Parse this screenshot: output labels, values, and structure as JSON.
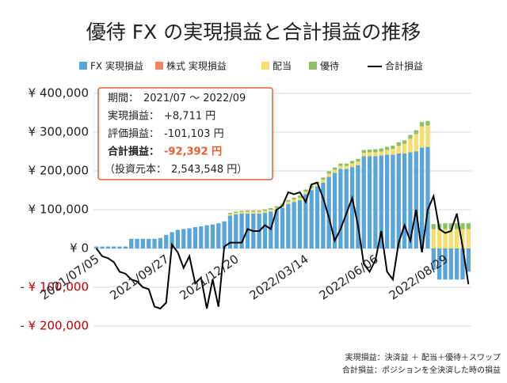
{
  "chart_data": {
    "type": "bar",
    "title": "優待 FX の実現損益と合計損益の推移",
    "categories": [
      "2021/07/05",
      null,
      null,
      null,
      null,
      null,
      null,
      null,
      null,
      null,
      null,
      null,
      "2021/09/27",
      null,
      null,
      null,
      null,
      null,
      null,
      null,
      null,
      null,
      null,
      null,
      "2021/12/20",
      null,
      null,
      null,
      null,
      null,
      null,
      null,
      null,
      null,
      null,
      null,
      "2022/03/14",
      null,
      null,
      null,
      null,
      null,
      null,
      null,
      null,
      null,
      null,
      null,
      "2022/06/06",
      null,
      null,
      null,
      null,
      null,
      null,
      null,
      null,
      null,
      null,
      null,
      "2022/08/29",
      null,
      null,
      null,
      null
    ],
    "series": [
      {
        "name": "FX 実現損益",
        "color": "#5aa5d9",
        "values": [
          5000,
          5000,
          5000,
          5000,
          5000,
          5000,
          25000,
          25000,
          25000,
          25000,
          25000,
          27000,
          35000,
          42000,
          48000,
          50000,
          52000,
          55000,
          57000,
          60000,
          62000,
          65000,
          70000,
          85000,
          88000,
          90000,
          90000,
          90000,
          90000,
          92000,
          95000,
          100000,
          105000,
          115000,
          120000,
          125000,
          140000,
          150000,
          160000,
          170000,
          185000,
          195000,
          205000,
          205000,
          210000,
          215000,
          238000,
          238000,
          238000,
          240000,
          242000,
          242000,
          245000,
          245000,
          248000,
          250000,
          260000,
          262000,
          -55000,
          -80000,
          -80000,
          -80000,
          -80000,
          -80000,
          -60000
        ]
      },
      {
        "name": "株式 実現損益",
        "color": "#f4845f",
        "values": [
          0,
          0,
          0,
          0,
          0,
          0,
          0,
          0,
          0,
          0,
          0,
          0,
          0,
          0,
          0,
          0,
          0,
          0,
          0,
          0,
          0,
          0,
          0,
          0,
          0,
          0,
          0,
          0,
          0,
          0,
          0,
          0,
          0,
          0,
          0,
          0,
          0,
          0,
          0,
          0,
          0,
          0,
          0,
          0,
          0,
          0,
          0,
          0,
          0,
          0,
          0,
          0,
          0,
          0,
          0,
          0,
          0,
          0,
          0,
          0,
          0,
          0,
          0,
          0,
          0
        ]
      },
      {
        "name": "配当",
        "color": "#f7dc6f",
        "values": [
          0,
          0,
          0,
          0,
          0,
          0,
          0,
          0,
          0,
          0,
          0,
          0,
          0,
          0,
          0,
          0,
          0,
          0,
          0,
          0,
          0,
          0,
          0,
          4000,
          4000,
          4000,
          5000,
          5000,
          5000,
          5000,
          5000,
          5000,
          6000,
          6000,
          6000,
          6000,
          7000,
          7000,
          7000,
          7000,
          8000,
          8000,
          8000,
          8000,
          9000,
          9000,
          9000,
          10000,
          10000,
          10000,
          12000,
          15000,
          20000,
          25000,
          35000,
          45000,
          55000,
          55000,
          50000,
          50000,
          50000,
          50000,
          50000,
          50000,
          50000
        ]
      },
      {
        "name": "優待",
        "color": "#8cc063",
        "values": [
          0,
          0,
          0,
          0,
          0,
          0,
          0,
          0,
          0,
          0,
          0,
          0,
          0,
          0,
          0,
          0,
          0,
          0,
          0,
          0,
          0,
          0,
          0,
          3000,
          3000,
          3000,
          3000,
          3000,
          3000,
          4000,
          4000,
          4000,
          4000,
          4000,
          5000,
          5000,
          5000,
          5000,
          5000,
          6000,
          6000,
          6000,
          6000,
          6000,
          7000,
          7000,
          7000,
          7000,
          8000,
          8000,
          8000,
          8000,
          9000,
          9000,
          10000,
          10000,
          11000,
          12000,
          13000,
          14000,
          15000,
          15000,
          15000,
          15000,
          15000
        ]
      }
    ],
    "line_series": {
      "name": "合計損益",
      "color": "#000000",
      "values": [
        0,
        -20000,
        -25000,
        -35000,
        -60000,
        -65000,
        -80000,
        -85000,
        -100000,
        -105000,
        -150000,
        -155000,
        -140000,
        10000,
        -10000,
        -50000,
        -20000,
        -90000,
        -75000,
        -155000,
        -80000,
        -150000,
        5000,
        15000,
        15000,
        15000,
        50000,
        45000,
        45000,
        60000,
        50000,
        100000,
        110000,
        145000,
        140000,
        145000,
        120000,
        165000,
        170000,
        130000,
        80000,
        20000,
        50000,
        90000,
        130000,
        60000,
        -40000,
        -60000,
        -30000,
        45000,
        -60000,
        -80000,
        15000,
        60000,
        20000,
        100000,
        -10000,
        100000,
        135000,
        50000,
        40000,
        45000,
        90000,
        5000,
        -92392
      ]
    },
    "ylim": [
      -200000,
      400000
    ],
    "yticks": [
      {
        "value": -200000,
        "label": "- ¥ 200,000"
      },
      {
        "value": -100000,
        "label": "- ¥ 100,000"
      },
      {
        "value": 0,
        "label": "¥ 0"
      },
      {
        "value": 100000,
        "label": "¥ 100,000"
      },
      {
        "value": 200000,
        "label": "¥ 200,000"
      },
      {
        "value": 300000,
        "label": "¥ 300,000"
      },
      {
        "value": 400000,
        "label": "¥ 400,000"
      }
    ],
    "negative_tick_color": "#c00000",
    "grid": true,
    "legend_position": "top",
    "info_box": [
      {
        "label": "期間：",
        "value": "2021/07 ～ 2022/09"
      },
      {
        "label": "実現損益：",
        "value": "+8,711 円"
      },
      {
        "label": "評価損益：",
        "value": "-101,103 円"
      },
      {
        "label": "合計損益：",
        "value": "-92,392 円"
      },
      {
        "label": "（投資元本：",
        "value": "2,543,548 円）"
      }
    ],
    "footnotes": [
      "実現損益：決済益 ＋ 配当＋優待＋スワップ",
      "合計損益：ポジションを全決済した時の損益"
    ]
  }
}
